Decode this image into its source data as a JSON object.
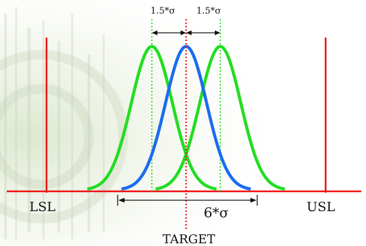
{
  "labels": {
    "lsl": "LSL",
    "usl": "USL",
    "target": "TARGET",
    "spread": "6*σ",
    "shift_left": "1.5*σ",
    "shift_right": "1.5*σ"
  },
  "colors": {
    "limits": "#ee1111",
    "target": "#ee1111",
    "centered_curve": "#1a6cf0",
    "shifted_curves": "#22dd22",
    "shift_guides": "#22dd22",
    "annotation": "#111111",
    "background_tint": "#dfe9d2"
  },
  "icons": {
    "arrow": "double-headed-arrow"
  }
}
